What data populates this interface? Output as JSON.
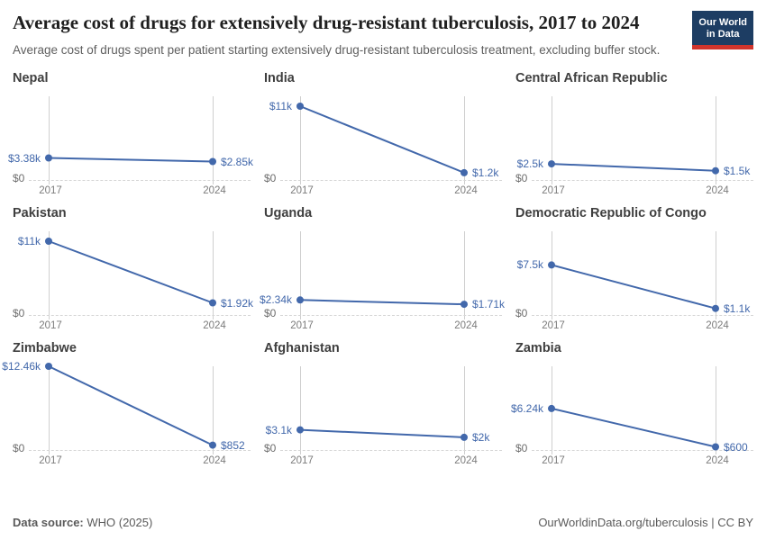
{
  "header": {
    "title": "Average cost of drugs for extensively drug-resistant tuberculosis, 2017 to 2024",
    "subtitle": "Average cost of drugs spent per patient starting extensively drug-resistant tuberculosis treatment, excluding buffer stock.",
    "logo": {
      "line1": "Our World",
      "line2": "in Data"
    }
  },
  "footer": {
    "source_label": "Data source:",
    "source_value": " WHO (2025)",
    "link": "OurWorldinData.org/tuberculosis",
    "separator": " | ",
    "license": "CC BY"
  },
  "colors": {
    "accent": "#4268ab",
    "grid": "#cfcfcf",
    "logo_bg": "#1d3d63",
    "logo_red": "#d0342c"
  },
  "chart_data": {
    "type": "line",
    "x": [
      2017,
      2024
    ],
    "x_labels": [
      "2017",
      "2024"
    ],
    "ylim": [
      0,
      12460
    ],
    "y_zero_label": "$0",
    "grid": "vertical-lines-at-x, dashed-zero-line",
    "legend": "none",
    "series": [
      {
        "name": "Nepal",
        "values": [
          3380,
          2850
        ],
        "labels": [
          "$3.38k",
          "$2.85k"
        ]
      },
      {
        "name": "India",
        "values": [
          11000,
          1200
        ],
        "labels": [
          "$11k",
          "$1.2k"
        ]
      },
      {
        "name": "Central African Republic",
        "values": [
          2500,
          1500
        ],
        "labels": [
          "$2.5k",
          "$1.5k"
        ]
      },
      {
        "name": "Pakistan",
        "values": [
          11000,
          1920
        ],
        "labels": [
          "$11k",
          "$1.92k"
        ]
      },
      {
        "name": "Uganda",
        "values": [
          2340,
          1710
        ],
        "labels": [
          "$2.34k",
          "$1.71k"
        ]
      },
      {
        "name": "Democratic Republic of Congo",
        "values": [
          7500,
          1100
        ],
        "labels": [
          "$7.5k",
          "$1.1k"
        ]
      },
      {
        "name": "Zimbabwe",
        "values": [
          12460,
          852
        ],
        "labels": [
          "$12.46k",
          "$852"
        ]
      },
      {
        "name": "Afghanistan",
        "values": [
          3100,
          2000
        ],
        "labels": [
          "$3.1k",
          "$2k"
        ]
      },
      {
        "name": "Zambia",
        "values": [
          6240,
          600
        ],
        "labels": [
          "$6.24k",
          "$600"
        ]
      }
    ]
  }
}
